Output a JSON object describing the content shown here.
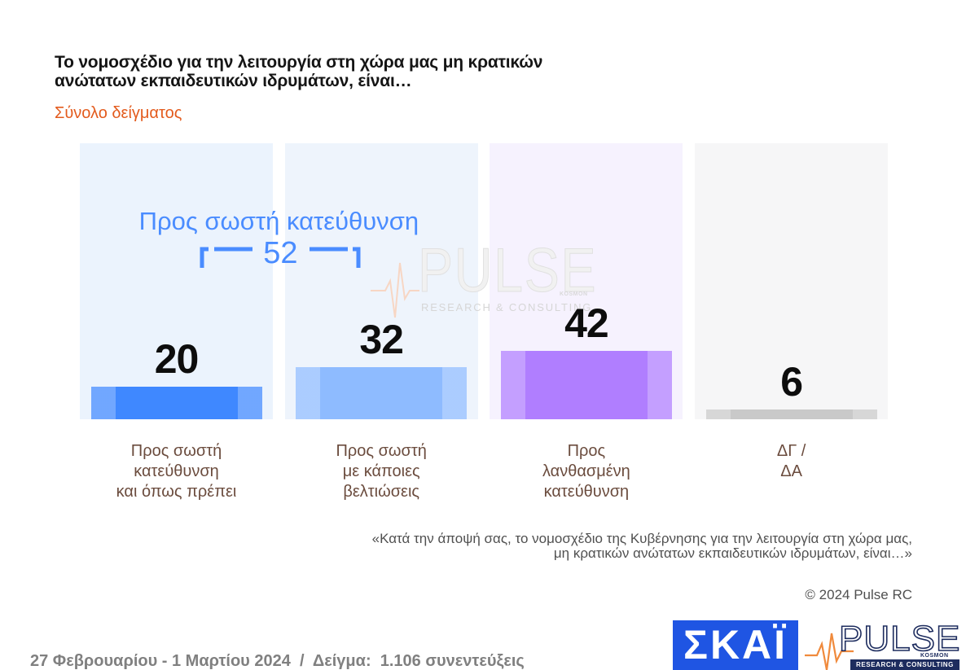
{
  "chart_data": {
    "type": "bar",
    "title": "Το νομοσχέδιο για την λειτουργία στη χώρα μας μη κρατικών\nανώτατων εκπαιδευτικών ιδρυμάτων, είναι…",
    "subtitle": "Σύνολο δείγματος",
    "categories": [
      "Προς σωστή\nκατεύθυνση\nκαι όπως πρέπει",
      "Προς σωστή\nμε κάποιες\nβελτιώσεις",
      "Προς\nλανθασμένη\nκατεύθυνση",
      "ΔΓ /\nΔΑ"
    ],
    "values": [
      20,
      32,
      42,
      6
    ],
    "colors": [
      "#3f88ff",
      "#8ebbff",
      "#b07eff",
      "#c9c9c9"
    ],
    "panel_colors": [
      "#ebf3fd",
      "#eef4fc",
      "#f6f2fe",
      "#f6f6f7"
    ],
    "grid": false,
    "annotations": [
      {
        "label": "Προς σωστή κατεύθυνση",
        "value": 52,
        "spans": [
          0,
          1
        ],
        "color": "#4a8cff"
      }
    ]
  },
  "note": {
    "question": "«Κατά την άποψή σας, το νομοσχέδιο της Κυβέρνησης για την λειτουργία στη χώρα μας,\nμη κρατικών ανώτατων εκπαιδευτικών ιδρυμάτων, είναι…»",
    "copyright": "© 2024 Pulse RC"
  },
  "footer": {
    "fieldwork": "27 Φεβρουαρίου - 1 Μαρτίου 2024  /  Δείγμα:  1.106 συνεντεύξεις"
  },
  "watermark": {
    "word": "PULSE",
    "sub": "KOSMON",
    "tagline": "RESEARCH & CONSULTING"
  },
  "logos": {
    "broadcaster": "ΣΚΑΪ",
    "pollster_word": "PULSE",
    "pollster_sub": "KOSMON",
    "pollster_tagline": "RESEARCH & CONSULTING",
    "broadcaster_color": "#1f55e3",
    "pollster_color": "#1d2c5e",
    "pulse_line_color": "#f08a3c"
  },
  "theme": {
    "subtitle_color": "#e35b1d",
    "category_text_color": "#6b4c3e"
  }
}
